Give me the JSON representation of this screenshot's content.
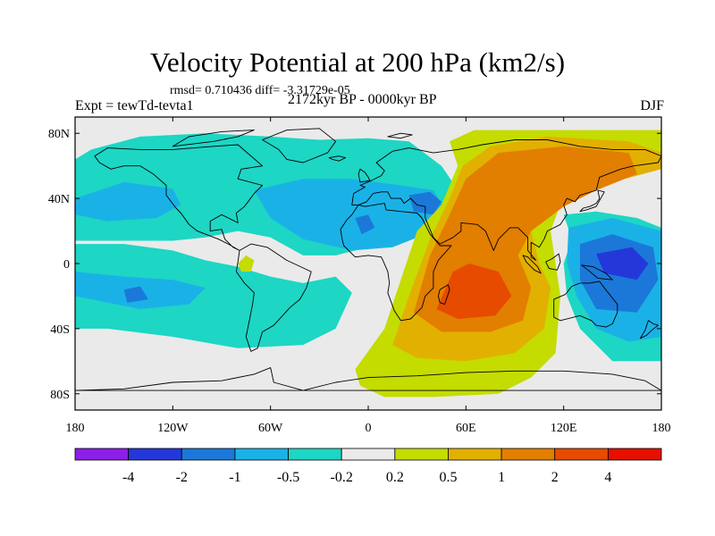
{
  "title": "Velocity Potential at 200 hPa (km2/s)",
  "stats": "rmsd= 0.710436 diff= -3.31729e-05",
  "experiment": "Expt = tewTd-tevta1",
  "period": "2172kyr BP - 0000kyr BP",
  "season": "DJF",
  "chart_data": {
    "type": "heatmap",
    "projection": "cylindrical-equidistant",
    "variable": "velocity potential difference at 200 hPa",
    "units": "km2/s",
    "xlim": [
      -180,
      180
    ],
    "ylim": [
      -90,
      90
    ],
    "x_ticks": [
      {
        "value": -180,
        "label": "180"
      },
      {
        "value": -120,
        "label": "120W"
      },
      {
        "value": -60,
        "label": "60W"
      },
      {
        "value": 0,
        "label": "0"
      },
      {
        "value": 60,
        "label": "60E"
      },
      {
        "value": 120,
        "label": "120E"
      },
      {
        "value": 180,
        "label": "180"
      }
    ],
    "y_ticks": [
      {
        "value": 80,
        "label": "80N"
      },
      {
        "value": 40,
        "label": "40N"
      },
      {
        "value": 0,
        "label": "0"
      },
      {
        "value": -40,
        "label": "40S"
      },
      {
        "value": -80,
        "label": "80S"
      }
    ],
    "colorbar": {
      "levels": [
        -4,
        -2,
        -1,
        -0.5,
        -0.2,
        0.2,
        0.5,
        1,
        2,
        4
      ],
      "labels": [
        "-4",
        "-2",
        "-1",
        "-0.5",
        "-0.2",
        "0.2",
        "0.5",
        "1",
        "2",
        "4"
      ],
      "colors": [
        "#8c1fe6",
        "#2438d9",
        "#1b78d9",
        "#1ab2e6",
        "#1dd6c4",
        "#eaeaea",
        "#c4dc00",
        "#e2b000",
        "#e27e00",
        "#e64b00",
        "#e60f00"
      ]
    },
    "regions": [
      {
        "name": "North Atlantic / Eurasia negative",
        "range": "-0.5 to -0.2",
        "lon": [
          -180,
          60
        ],
        "lat": [
          10,
          80
        ]
      },
      {
        "name": "Mediterranean / Arabia minimum",
        "range": "-1 to -0.5",
        "lon": [
          -10,
          45
        ],
        "lat": [
          5,
          40
        ]
      },
      {
        "name": "Equatorial Pacific negative",
        "range": "-0.5 to -0.2",
        "lon": [
          -180,
          -40
        ],
        "lat": [
          -30,
          10
        ]
      },
      {
        "name": "Western Pacific / Maritime Continent minimum",
        "range": "-2 to -1",
        "lon": [
          125,
          180
        ],
        "lat": [
          -40,
          30
        ]
      },
      {
        "name": "Northern South America positive",
        "range": "0.2 to 0.5",
        "lon": [
          -82,
          -70
        ],
        "lat": [
          -5,
          5
        ]
      },
      {
        "name": "Indian Ocean / Asia positive",
        "range": "0.2 to 2",
        "lon": [
          -5,
          120
        ],
        "lat": [
          -80,
          80
        ]
      },
      {
        "name": "Indian Ocean maximum",
        "range": "1 to 2",
        "lon": [
          35,
          85
        ],
        "lat": [
          -35,
          10
        ]
      },
      {
        "name": "Southern Ocean positive",
        "range": "0.2 to 0.5",
        "lon": [
          -5,
          100
        ],
        "lat": [
          -85,
          -55
        ]
      }
    ]
  }
}
